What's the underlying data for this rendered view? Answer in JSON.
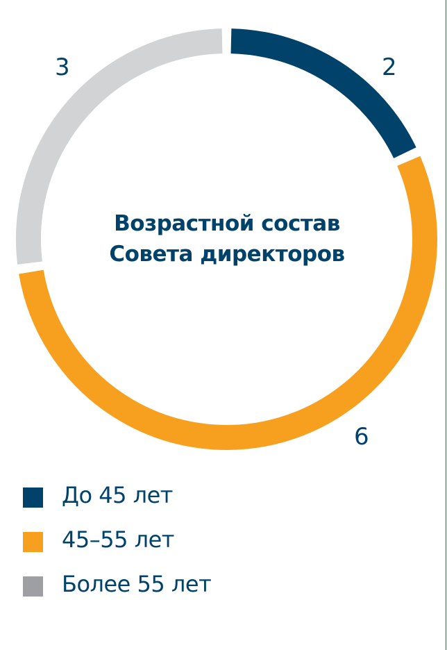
{
  "chart_data": {
    "type": "pie",
    "variant": "donut",
    "title": "Возрастной состав Совета директоров",
    "categories": [
      "До 45 лет",
      "45–55 лет",
      "Более 55 лет"
    ],
    "values": [
      2,
      6,
      3
    ],
    "colors": [
      "#00426a",
      "#f7a01f",
      "#d1d3d4"
    ],
    "legend_colors": [
      "#00426a",
      "#f7a01f",
      "#9d9fa2"
    ],
    "legend_position": "bottom",
    "start_angle": "top, clockwise"
  },
  "title": {
    "line1": "Возрастной состав",
    "line2": "Совета директоров"
  },
  "labels": {
    "under45": "2",
    "from45to55": "6",
    "over55": "3"
  },
  "legend": {
    "items": [
      {
        "label": "До 45 лет",
        "color": "#00426a"
      },
      {
        "label": "45–55 лет",
        "color": "#f7a01f"
      },
      {
        "label": "Более 55 лет",
        "color": "#9d9fa2"
      }
    ]
  }
}
